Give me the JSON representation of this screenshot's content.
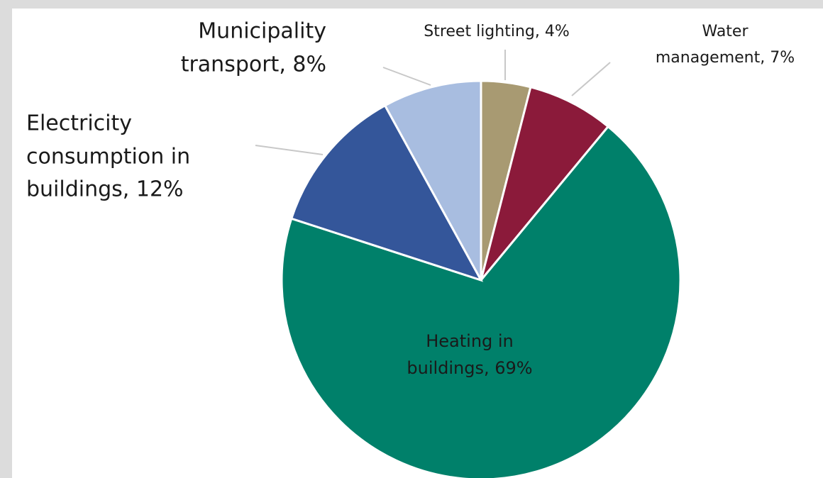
{
  "chart_data": {
    "type": "pie",
    "values": [
      4,
      7,
      69,
      12,
      8
    ],
    "value_labels": [
      [
        "Street lighting, 4%"
      ],
      [
        "Water",
        "management, 7%"
      ],
      [
        "Heating in",
        "buildings, 69%"
      ],
      [
        "Electricity",
        "consumption in",
        "buildings, 12%"
      ],
      [
        "Municipality",
        "transport, 8%"
      ]
    ],
    "colors": [
      "#a89a72",
      "#8b1a3a",
      "#00806a",
      "#34569a",
      "#a8bde0"
    ]
  }
}
